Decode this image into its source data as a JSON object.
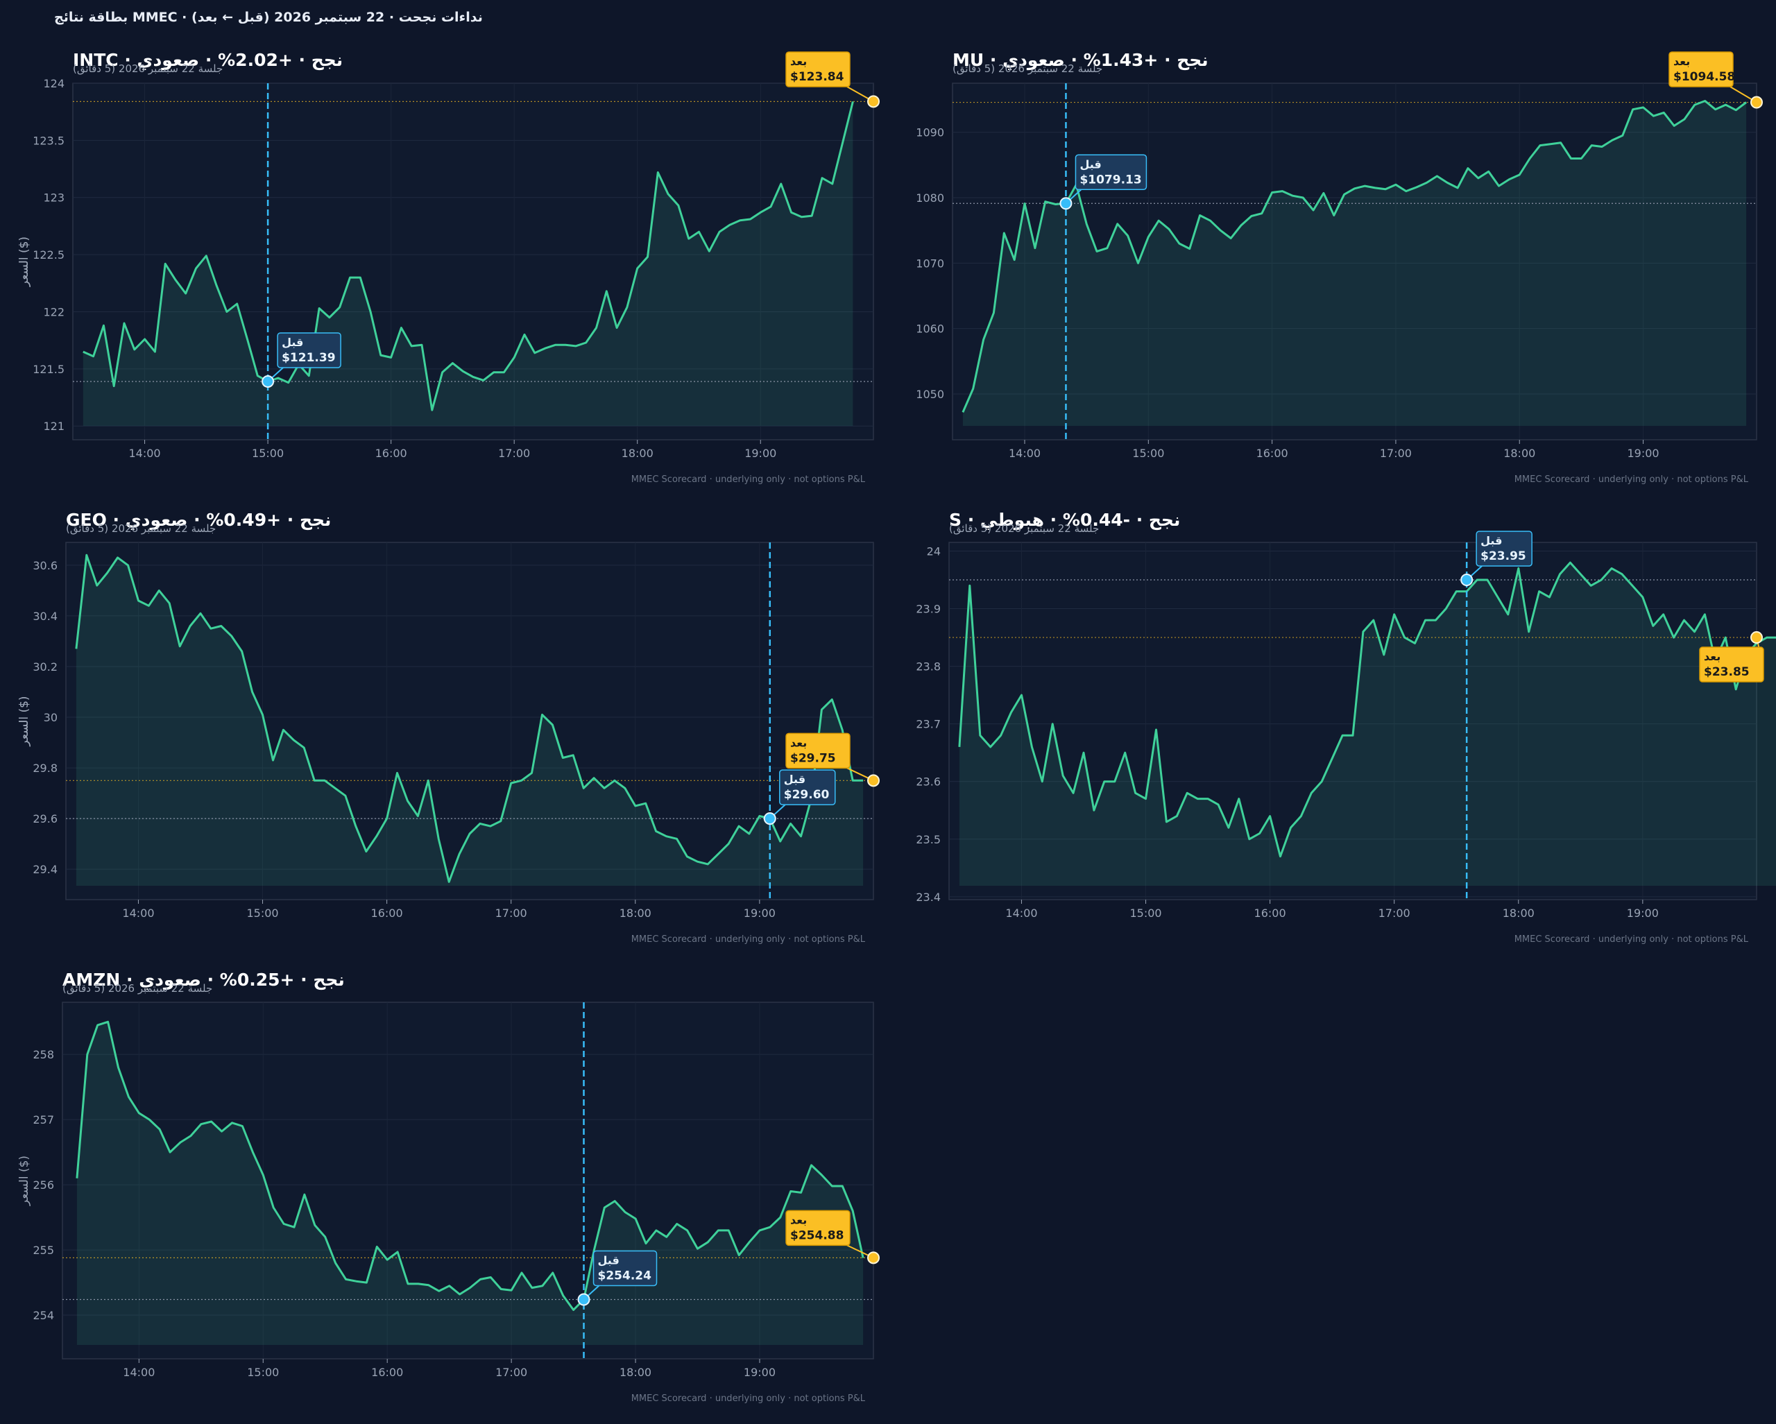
{
  "figure": {
    "title": "بطاقة نتائج MMEC · نداءات نجحت · 22 سبتمبر 2026 (قبل ← بعد)",
    "background": "#0e1629",
    "panel_background": "#101a2e",
    "line_color": "#3fd19a",
    "before_color": "#38bdf8",
    "after_color": "#fbbf24"
  },
  "chart_data": [
    {
      "type": "line",
      "title": "INTC · نجح · +2.02% · صعودي",
      "subtitle": "جلسة 22 سبتمبر 2026 (5 دقائق)",
      "ylabel": "السعر ($)",
      "footer": "MMEC Scorecard · underlying only · not options P&L",
      "x_start": "13:30",
      "x_end": "19:55",
      "interval_min": 5,
      "ylim": [
        120.88,
        124.0
      ],
      "y_ticks": [
        121.0,
        121.5,
        122.0,
        122.5,
        123.0,
        123.5,
        124.0
      ],
      "x_ticks": [
        "14:00",
        "15:00",
        "16:00",
        "17:00",
        "18:00",
        "19:00"
      ],
      "before": {
        "label": "قبل",
        "time": "15:00",
        "price": 121.39,
        "text": "$121.39"
      },
      "after": {
        "label": "بعد",
        "time": "19:55",
        "price": 123.84,
        "text": "$123.84"
      },
      "series": [
        {
          "values": [
            121.65,
            121.61,
            121.88,
            121.35,
            121.9,
            121.67,
            121.76,
            121.65,
            122.42,
            122.28,
            122.16,
            122.38,
            122.49,
            122.23,
            122.0,
            122.07,
            121.76,
            121.44,
            121.39,
            121.42,
            121.38,
            121.54,
            121.44,
            122.03,
            121.95,
            122.04,
            122.3,
            122.3,
            122.0,
            121.62,
            121.6,
            121.86,
            121.7,
            121.71,
            121.14,
            121.47,
            121.55,
            121.48,
            121.43,
            121.4,
            121.47,
            121.47,
            121.6,
            121.8,
            121.64,
            121.68,
            121.71,
            121.71,
            121.7,
            121.73,
            121.86,
            122.18,
            121.86,
            122.04,
            122.38,
            122.48,
            123.22,
            123.03,
            122.93,
            122.64,
            122.7,
            122.53,
            122.7,
            122.76,
            122.8,
            122.81,
            122.87,
            122.92,
            123.12,
            122.87,
            122.83,
            122.84,
            123.17,
            123.12,
            123.48,
            123.84
          ]
        }
      ]
    },
    {
      "type": "line",
      "title": "MU · نجح · +1.43% · صعودي",
      "subtitle": "جلسة 22 سبتمبر 2026 (5 دقائق)",
      "ylabel": "السعر ($)",
      "footer": "MMEC Scorecard · underlying only · not options P&L",
      "x_start": "13:30",
      "x_end": "19:55",
      "interval_min": 5,
      "ylim": [
        1043.0,
        1097.5
      ],
      "y_ticks": [
        1050,
        1060,
        1070,
        1080,
        1090
      ],
      "x_ticks": [
        "14:00",
        "15:00",
        "16:00",
        "17:00",
        "18:00",
        "19:00"
      ],
      "before": {
        "label": "قبل",
        "time": "14:20",
        "price": 1079.13,
        "text": "$1079.13"
      },
      "after": {
        "label": "بعد",
        "time": "19:55",
        "price": 1094.58,
        "text": "$1094.58"
      },
      "series": [
        {
          "values": [
            1047.2,
            1050.8,
            1058.3,
            1062.4,
            1074.6,
            1070.5,
            1079.1,
            1072.3,
            1079.4,
            1079.0,
            1079.13,
            1082.0,
            1076.0,
            1071.8,
            1072.3,
            1076.0,
            1074.2,
            1070.0,
            1074.0,
            1076.5,
            1075.2,
            1073.0,
            1072.2,
            1077.3,
            1076.5,
            1075.0,
            1073.8,
            1075.8,
            1077.2,
            1077.6,
            1080.8,
            1081.0,
            1080.3,
            1080.0,
            1078.1,
            1080.7,
            1077.3,
            1080.5,
            1081.4,
            1081.8,
            1081.5,
            1081.3,
            1082.0,
            1081.0,
            1081.6,
            1082.3,
            1083.3,
            1082.3,
            1081.5,
            1084.5,
            1083.0,
            1084.0,
            1081.8,
            1082.8,
            1083.5,
            1086.0,
            1088.0,
            1088.2,
            1088.4,
            1086.0,
            1086.0,
            1088.0,
            1087.8,
            1088.8,
            1089.5,
            1093.5,
            1093.8,
            1092.5,
            1093.0,
            1091.0,
            1092.0,
            1094.2,
            1094.8,
            1093.5,
            1094.2,
            1093.4,
            1094.58
          ]
        }
      ]
    },
    {
      "type": "line",
      "title": "GEO · نجح · +0.49% · صعودي",
      "subtitle": "جلسة 22 سبتمبر 2026 (5 دقائق)",
      "ylabel": "السعر ($)",
      "footer": "MMEC Scorecard · underlying only · not options P&L",
      "x_start": "13:30",
      "x_end": "19:55",
      "interval_min": 5,
      "ylim": [
        29.28,
        30.69
      ],
      "y_ticks": [
        29.4,
        29.6,
        29.8,
        30.0,
        30.2,
        30.4,
        30.6
      ],
      "x_ticks": [
        "14:00",
        "15:00",
        "16:00",
        "17:00",
        "18:00",
        "19:00"
      ],
      "before": {
        "label": "قبل",
        "time": "19:05",
        "price": 29.6,
        "text": "$29.60"
      },
      "after": {
        "label": "بعد",
        "time": "19:55",
        "price": 29.75,
        "text": "$29.75"
      },
      "series": [
        {
          "values": [
            30.27,
            30.64,
            30.52,
            30.57,
            30.63,
            30.6,
            30.46,
            30.44,
            30.5,
            30.45,
            30.28,
            30.36,
            30.41,
            30.35,
            30.36,
            30.32,
            30.26,
            30.1,
            30.01,
            29.83,
            29.95,
            29.91,
            29.88,
            29.75,
            29.75,
            29.72,
            29.69,
            29.57,
            29.47,
            29.53,
            29.6,
            29.78,
            29.67,
            29.61,
            29.75,
            29.52,
            29.35,
            29.46,
            29.54,
            29.58,
            29.57,
            29.59,
            29.74,
            29.75,
            29.78,
            30.01,
            29.97,
            29.84,
            29.85,
            29.72,
            29.76,
            29.72,
            29.75,
            29.72,
            29.65,
            29.66,
            29.55,
            29.53,
            29.52,
            29.45,
            29.43,
            29.42,
            29.46,
            29.5,
            29.57,
            29.54,
            29.61,
            29.6,
            29.51,
            29.58,
            29.53,
            29.68,
            30.03,
            30.07,
            29.95,
            29.75,
            29.75
          ]
        }
      ]
    },
    {
      "type": "line",
      "title": "S · نجح · -0.44% · هبوطي",
      "subtitle": "جلسة 22 سبتمبر 2026 (5 دقائق)",
      "ylabel": "السعر ($)",
      "footer": "MMEC Scorecard · underlying only · not options P&L",
      "x_start": "13:30",
      "x_end": "19:55",
      "interval_min": 5,
      "ylim": [
        23.395,
        24.015
      ],
      "y_ticks": [
        23.4,
        23.5,
        23.6,
        23.7,
        23.8,
        23.9,
        24.0
      ],
      "x_ticks": [
        "14:00",
        "15:00",
        "16:00",
        "17:00",
        "18:00",
        "19:00"
      ],
      "before": {
        "label": "قبل",
        "time": "17:35",
        "price": 23.95,
        "text": "$23.95"
      },
      "after": {
        "label": "بعد",
        "time": "19:55",
        "price": 23.85,
        "text": "$23.85"
      },
      "series": [
        {
          "values": [
            23.66,
            23.94,
            23.68,
            23.66,
            23.68,
            23.72,
            23.75,
            23.66,
            23.6,
            23.7,
            23.61,
            23.58,
            23.65,
            23.55,
            23.6,
            23.6,
            23.65,
            23.58,
            23.57,
            23.69,
            23.53,
            23.54,
            23.58,
            23.57,
            23.57,
            23.56,
            23.52,
            23.57,
            23.5,
            23.51,
            23.54,
            23.47,
            23.52,
            23.54,
            23.58,
            23.6,
            23.64,
            23.68,
            23.68,
            23.86,
            23.88,
            23.82,
            23.89,
            23.85,
            23.84,
            23.88,
            23.88,
            23.9,
            23.93,
            23.93,
            23.95,
            23.95,
            23.92,
            23.89,
            23.97,
            23.86,
            23.93,
            23.92,
            23.96,
            23.98,
            23.96,
            23.94,
            23.95,
            23.97,
            23.96,
            23.94,
            23.92,
            23.87,
            23.89,
            23.85,
            23.88,
            23.86,
            23.89,
            23.81,
            23.85,
            23.76,
            23.82,
            23.84,
            23.85,
            23.85
          ]
        }
      ]
    },
    {
      "type": "line",
      "title": "AMZN · نجح · +0.25% · صعودي",
      "subtitle": "جلسة 22 سبتمبر 2026 (5 دقائق)",
      "ylabel": "السعر ($)",
      "footer": "MMEC Scorecard · underlying only · not options P&L",
      "x_start": "13:30",
      "x_end": "19:55",
      "interval_min": 5,
      "ylim": [
        253.33,
        258.8
      ],
      "y_ticks": [
        254,
        255,
        256,
        257,
        258
      ],
      "x_ticks": [
        "14:00",
        "15:00",
        "16:00",
        "17:00",
        "18:00",
        "19:00"
      ],
      "before": {
        "label": "قبل",
        "time": "17:35",
        "price": 254.24,
        "text": "$254.24"
      },
      "after": {
        "label": "بعد",
        "time": "19:55",
        "price": 254.88,
        "text": "$254.88"
      },
      "series": [
        {
          "values": [
            256.1,
            258.0,
            258.45,
            258.5,
            257.8,
            257.35,
            257.1,
            257.0,
            256.85,
            256.5,
            256.65,
            256.75,
            256.93,
            256.97,
            256.82,
            256.95,
            256.9,
            256.5,
            256.15,
            255.65,
            255.4,
            255.35,
            255.85,
            255.38,
            255.2,
            254.8,
            254.55,
            254.52,
            254.5,
            255.05,
            254.85,
            254.97,
            254.48,
            254.48,
            254.46,
            254.37,
            254.45,
            254.32,
            254.42,
            254.55,
            254.58,
            254.4,
            254.38,
            254.65,
            254.42,
            254.45,
            254.65,
            254.3,
            254.08,
            254.24,
            255.0,
            255.65,
            255.75,
            255.58,
            255.48,
            255.1,
            255.3,
            255.2,
            255.4,
            255.3,
            255.02,
            255.12,
            255.3,
            255.3,
            254.92,
            255.12,
            255.3,
            255.35,
            255.5,
            255.9,
            255.88,
            256.3,
            256.15,
            255.98,
            255.98,
            255.6,
            254.88
          ]
        }
      ]
    }
  ]
}
